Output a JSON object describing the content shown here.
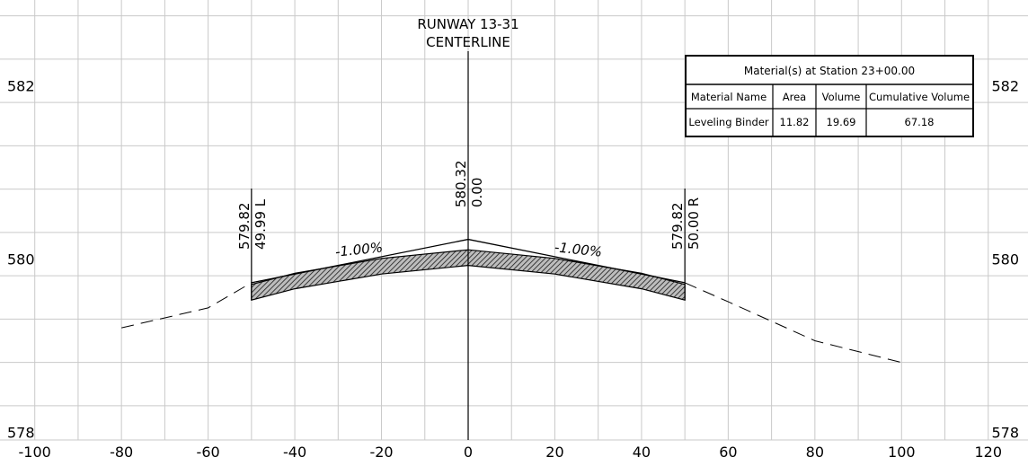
{
  "title_line1": "RUNWAY 13-31",
  "title_line2": "CENTERLINE",
  "x_ticks": [
    "-100",
    "-80",
    "-60",
    "-40",
    "-20",
    "0",
    "20",
    "40",
    "60",
    "80",
    "100",
    "120"
  ],
  "y_labels_left": [
    {
      "elev": 582,
      "label": "582"
    },
    {
      "elev": 580,
      "label": "580"
    },
    {
      "elev": 578,
      "label": "578"
    }
  ],
  "y_labels_right": [
    {
      "elev": 582,
      "label": "582"
    },
    {
      "elev": 580,
      "label": "580"
    },
    {
      "elev": 578,
      "label": "578"
    }
  ],
  "left_edge": {
    "offset": -50,
    "elevation_label": "579.82",
    "offset_label": "49.99 L"
  },
  "centerline": {
    "offset": 0,
    "elevation_label": "580.32",
    "offset_label": "0.00"
  },
  "right_edge": {
    "offset": 50,
    "elevation_label": "579.82",
    "offset_label": "50.00 R"
  },
  "grade_left": "-1.00%",
  "grade_right": "-1.00%",
  "finished_grade": [
    [
      -50,
      579.82
    ],
    [
      0,
      580.32
    ],
    [
      50,
      579.82
    ]
  ],
  "layer_top": [
    [
      -50,
      579.8
    ],
    [
      -40,
      579.93
    ],
    [
      -20,
      580.1
    ],
    [
      0,
      580.2
    ],
    [
      20,
      580.1
    ],
    [
      40,
      579.93
    ],
    [
      50,
      579.8
    ]
  ],
  "layer_bottom": [
    [
      -50,
      579.62
    ],
    [
      -40,
      579.75
    ],
    [
      -20,
      579.92
    ],
    [
      0,
      580.02
    ],
    [
      20,
      579.92
    ],
    [
      40,
      579.75
    ],
    [
      50,
      579.62
    ]
  ],
  "existing_ground_left": [
    [
      -80,
      579.3
    ],
    [
      -60,
      579.53
    ],
    [
      -50,
      579.82
    ]
  ],
  "existing_ground_right": [
    [
      50,
      579.82
    ],
    [
      60,
      579.6
    ],
    [
      80,
      579.15
    ],
    [
      100,
      578.9
    ]
  ],
  "material_table": {
    "title": "Material(s) at Station 23+00.00",
    "headers": [
      "Material Name",
      "Area",
      "Volume",
      "Cumulative Volume"
    ],
    "rows": [
      [
        "Leveling Binder",
        "11.82",
        "19.69",
        "67.18"
      ]
    ]
  }
}
